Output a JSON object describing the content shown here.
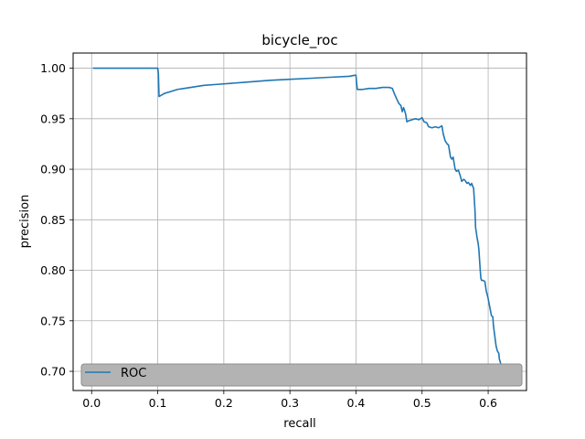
{
  "chart_data": {
    "type": "line",
    "title": "bicycle_roc",
    "xlabel": "recall",
    "ylabel": "precision",
    "xlim": [
      -0.028,
      0.658
    ],
    "ylim": [
      0.681,
      1.015
    ],
    "xticks": [
      0.0,
      0.1,
      0.2,
      0.3,
      0.4,
      0.5,
      0.6
    ],
    "xtick_labels": [
      "0.0",
      "0.1",
      "0.2",
      "0.3",
      "0.4",
      "0.5",
      "0.6"
    ],
    "yticks": [
      0.7,
      0.75,
      0.8,
      0.85,
      0.9,
      0.95,
      1.0
    ],
    "ytick_labels": [
      "0.70",
      "0.75",
      "0.80",
      "0.85",
      "0.90",
      "0.95",
      "1.00"
    ],
    "grid": true,
    "legend": {
      "position": "bottom",
      "entries": [
        "ROC"
      ]
    },
    "colors": {
      "series": "#1f77b4",
      "grid": "#b0b0b0",
      "legend_bg": "#b3b3b3",
      "legend_border": "#8c8c8c"
    },
    "series": [
      {
        "name": "ROC",
        "x": [
          0.002,
          0.05,
          0.1,
          0.101,
          0.102,
          0.11,
          0.12,
          0.13,
          0.14,
          0.15,
          0.17,
          0.19,
          0.21,
          0.23,
          0.25,
          0.27,
          0.3,
          0.33,
          0.36,
          0.39,
          0.398,
          0.4,
          0.401,
          0.402,
          0.41,
          0.42,
          0.43,
          0.44,
          0.45,
          0.455,
          0.458,
          0.46,
          0.462,
          0.465,
          0.468,
          0.47,
          0.472,
          0.475,
          0.477,
          0.48,
          0.485,
          0.49,
          0.495,
          0.5,
          0.503,
          0.507,
          0.51,
          0.515,
          0.52,
          0.525,
          0.53,
          0.532,
          0.535,
          0.538,
          0.54,
          0.543,
          0.545,
          0.547,
          0.55,
          0.552,
          0.555,
          0.558,
          0.56,
          0.563,
          0.565,
          0.568,
          0.57,
          0.573,
          0.575,
          0.578,
          0.58,
          0.581,
          0.582,
          0.583,
          0.585,
          0.586,
          0.587,
          0.588,
          0.589,
          0.59,
          0.592,
          0.595,
          0.597,
          0.6,
          0.602,
          0.605,
          0.607,
          0.608,
          0.61,
          0.612,
          0.614,
          0.616,
          0.617,
          0.618,
          0.62,
          0.622,
          0.623,
          0.624,
          0.625
        ],
        "y": [
          1.0,
          1.0,
          1.0,
          0.995,
          0.972,
          0.975,
          0.977,
          0.979,
          0.98,
          0.981,
          0.983,
          0.984,
          0.985,
          0.986,
          0.987,
          0.988,
          0.989,
          0.99,
          0.991,
          0.992,
          0.993,
          0.993,
          0.985,
          0.979,
          0.979,
          0.98,
          0.98,
          0.981,
          0.981,
          0.98,
          0.975,
          0.972,
          0.969,
          0.965,
          0.963,
          0.957,
          0.961,
          0.955,
          0.947,
          0.948,
          0.949,
          0.95,
          0.949,
          0.951,
          0.947,
          0.946,
          0.942,
          0.941,
          0.942,
          0.941,
          0.943,
          0.935,
          0.928,
          0.925,
          0.924,
          0.912,
          0.91,
          0.912,
          0.9,
          0.898,
          0.899,
          0.893,
          0.888,
          0.89,
          0.889,
          0.886,
          0.887,
          0.884,
          0.886,
          0.881,
          0.86,
          0.842,
          0.838,
          0.833,
          0.826,
          0.82,
          0.81,
          0.8,
          0.792,
          0.79,
          0.79,
          0.789,
          0.78,
          0.772,
          0.765,
          0.755,
          0.754,
          0.745,
          0.735,
          0.725,
          0.72,
          0.718,
          0.712,
          0.71,
          0.705,
          0.698,
          0.695,
          0.695,
          0.695
        ]
      }
    ]
  }
}
